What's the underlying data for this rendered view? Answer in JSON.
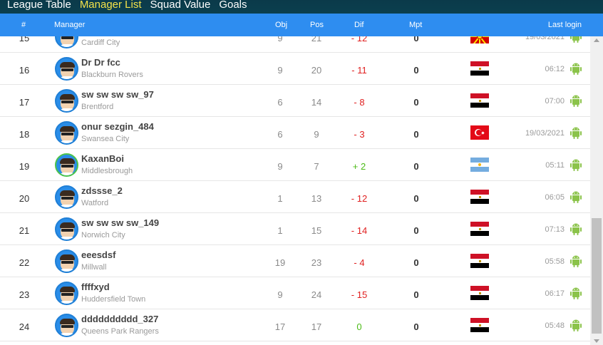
{
  "tabs": [
    {
      "label": "League Table",
      "active": false
    },
    {
      "label": "Manager List",
      "active": true
    },
    {
      "label": "Squad Value",
      "active": false
    },
    {
      "label": "Goals",
      "active": false
    }
  ],
  "header": {
    "num": "#",
    "manager": "Manager",
    "obj": "Obj",
    "pos": "Pos",
    "dif": "Dif",
    "mpt": "Mpt",
    "last_login": "Last login"
  },
  "colors": {
    "header_bg": "#2e8df0",
    "negative": "#e02020",
    "positive": "#4cbb17",
    "tab_active": "#f4e24a",
    "android": "#8bc34a"
  },
  "rows": [
    {
      "num": "15",
      "name": "",
      "team": "Cardiff City",
      "obj": "9",
      "pos": "21",
      "dif": "- 12",
      "dif_sign": "neg",
      "mpt": "0",
      "flag": "north-macedonia",
      "last": "19/03/2021",
      "avatar_border": "blue"
    },
    {
      "num": "16",
      "name": "Dr Dr fcc",
      "team": "Blackburn Rovers",
      "obj": "9",
      "pos": "20",
      "dif": "- 11",
      "dif_sign": "neg",
      "mpt": "0",
      "flag": "egypt",
      "last": "06:12",
      "avatar_border": "blue"
    },
    {
      "num": "17",
      "name": "sw sw sw sw_97",
      "team": "Brentford",
      "obj": "6",
      "pos": "14",
      "dif": "- 8",
      "dif_sign": "neg",
      "mpt": "0",
      "flag": "egypt",
      "last": "07:00",
      "avatar_border": "blue"
    },
    {
      "num": "18",
      "name": "onur sezgin_484",
      "team": "Swansea City",
      "obj": "6",
      "pos": "9",
      "dif": "- 3",
      "dif_sign": "neg",
      "mpt": "0",
      "flag": "turkey",
      "last": "19/03/2021",
      "avatar_border": "blue"
    },
    {
      "num": "19",
      "name": "KaxanBoi",
      "team": "Middlesbrough",
      "obj": "9",
      "pos": "7",
      "dif": "+ 2",
      "dif_sign": "pos",
      "mpt": "0",
      "flag": "argentina",
      "last": "05:11",
      "avatar_border": "green"
    },
    {
      "num": "20",
      "name": "zdssse_2",
      "team": "Watford",
      "obj": "1",
      "pos": "13",
      "dif": "- 12",
      "dif_sign": "neg",
      "mpt": "0",
      "flag": "egypt",
      "last": "06:05",
      "avatar_border": "blue"
    },
    {
      "num": "21",
      "name": "sw sw sw sw_149",
      "team": "Norwich City",
      "obj": "1",
      "pos": "15",
      "dif": "- 14",
      "dif_sign": "neg",
      "mpt": "0",
      "flag": "egypt",
      "last": "07:13",
      "avatar_border": "blue"
    },
    {
      "num": "22",
      "name": "eeesdsf",
      "team": "Millwall",
      "obj": "19",
      "pos": "23",
      "dif": "- 4",
      "dif_sign": "neg",
      "mpt": "0",
      "flag": "egypt",
      "last": "05:58",
      "avatar_border": "blue"
    },
    {
      "num": "23",
      "name": "ffffxyd",
      "team": "Huddersfield Town",
      "obj": "9",
      "pos": "24",
      "dif": "- 15",
      "dif_sign": "neg",
      "mpt": "0",
      "flag": "egypt",
      "last": "06:17",
      "avatar_border": "blue"
    },
    {
      "num": "24",
      "name": "dddddddddd_327",
      "team": "Queens Park Rangers",
      "obj": "17",
      "pos": "17",
      "dif": "0",
      "dif_sign": "pos",
      "mpt": "0",
      "flag": "egypt",
      "last": "05:48",
      "avatar_border": "blue"
    }
  ]
}
